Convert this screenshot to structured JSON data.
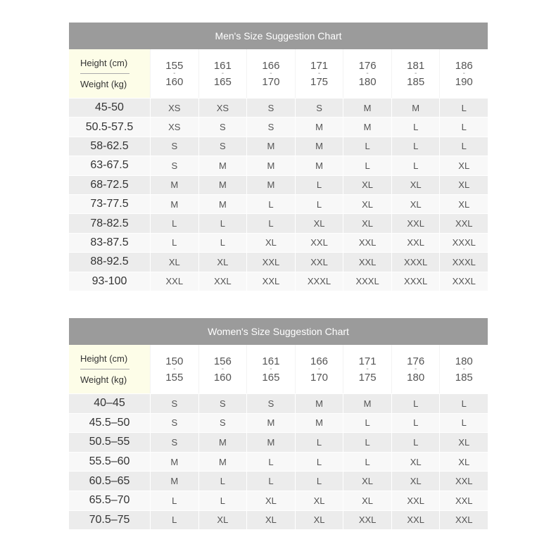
{
  "charts": [
    {
      "title": "Men's Size Suggestion Chart",
      "height_label": "Height (cm)",
      "weight_label": "Weight (kg)",
      "heights": [
        [
          "155",
          "160"
        ],
        [
          "161",
          "165"
        ],
        [
          "166",
          "170"
        ],
        [
          "171",
          "175"
        ],
        [
          "176",
          "180"
        ],
        [
          "181",
          "185"
        ],
        [
          "186",
          "190"
        ]
      ],
      "rows": [
        {
          "weight": "45-50",
          "sizes": [
            "XS",
            "XS",
            "S",
            "S",
            "M",
            "M",
            "L"
          ]
        },
        {
          "weight": "50.5-57.5",
          "sizes": [
            "XS",
            "S",
            "S",
            "M",
            "M",
            "L",
            "L"
          ]
        },
        {
          "weight": "58-62.5",
          "sizes": [
            "S",
            "S",
            "M",
            "M",
            "L",
            "L",
            "L"
          ]
        },
        {
          "weight": "63-67.5",
          "sizes": [
            "S",
            "M",
            "M",
            "M",
            "L",
            "L",
            "XL"
          ]
        },
        {
          "weight": "68-72.5",
          "sizes": [
            "M",
            "M",
            "M",
            "L",
            "XL",
            "XL",
            "XL"
          ]
        },
        {
          "weight": "73-77.5",
          "sizes": [
            "M",
            "M",
            "L",
            "L",
            "XL",
            "XL",
            "XL"
          ]
        },
        {
          "weight": "78-82.5",
          "sizes": [
            "L",
            "L",
            "L",
            "XL",
            "XL",
            "XXL",
            "XXL"
          ]
        },
        {
          "weight": "83-87.5",
          "sizes": [
            "L",
            "L",
            "XL",
            "XXL",
            "XXL",
            "XXL",
            "XXXL"
          ]
        },
        {
          "weight": "88-92.5",
          "sizes": [
            "XL",
            "XL",
            "XXL",
            "XXL",
            "XXL",
            "XXXL",
            "XXXL"
          ]
        },
        {
          "weight": "93-100",
          "sizes": [
            "XXL",
            "XXL",
            "XXL",
            "XXXL",
            "XXXL",
            "XXXL",
            "XXXL"
          ]
        }
      ]
    },
    {
      "title": "Women's Size Suggestion Chart",
      "height_label": "Height (cm)",
      "weight_label": "Weight (kg)",
      "heights": [
        [
          "150",
          "155"
        ],
        [
          "156",
          "160"
        ],
        [
          "161",
          "165"
        ],
        [
          "166",
          "170"
        ],
        [
          "171",
          "175"
        ],
        [
          "176",
          "180"
        ],
        [
          "180",
          "185"
        ]
      ],
      "rows": [
        {
          "weight": "40–45",
          "sizes": [
            "S",
            "S",
            "S",
            "M",
            "M",
            "L",
            "L"
          ]
        },
        {
          "weight": "45.5–50",
          "sizes": [
            "S",
            "S",
            "M",
            "M",
            "L",
            "L",
            "L"
          ]
        },
        {
          "weight": "50.5–55",
          "sizes": [
            "S",
            "M",
            "M",
            "L",
            "L",
            "L",
            "XL"
          ]
        },
        {
          "weight": "55.5–60",
          "sizes": [
            "M",
            "M",
            "L",
            "L",
            "L",
            "XL",
            "XL"
          ]
        },
        {
          "weight": "60.5–65",
          "sizes": [
            "M",
            "L",
            "L",
            "L",
            "XL",
            "XL",
            "XXL"
          ]
        },
        {
          "weight": "65.5–70",
          "sizes": [
            "L",
            "L",
            "XL",
            "XL",
            "XL",
            "XXL",
            "XXL"
          ]
        },
        {
          "weight": "70.5–75",
          "sizes": [
            "L",
            "XL",
            "XL",
            "XL",
            "XXL",
            "XXL",
            "XXL"
          ]
        }
      ]
    }
  ]
}
